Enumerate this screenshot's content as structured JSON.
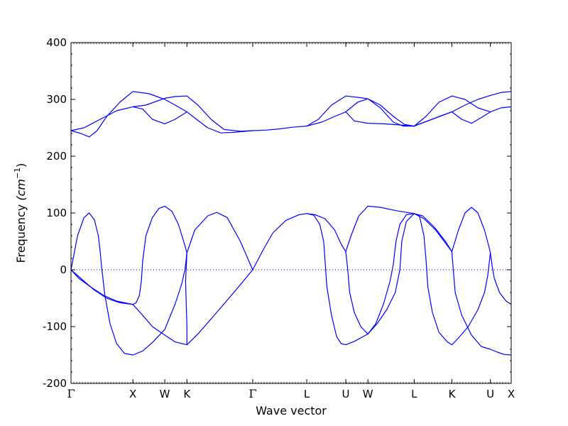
{
  "chart_data": {
    "type": "line",
    "xlabel": "Wave vector",
    "ylabel": "Frequency ",
    "ylabel_unit": "(cm",
    "ylabel_exp": "−1",
    "ylabel_close": ")",
    "ylim": [
      -200,
      400
    ],
    "yticks": [
      -200,
      -100,
      0,
      100,
      200,
      300,
      400
    ],
    "xlim": [
      0,
      6.76
    ],
    "grid": false,
    "line_color": "#0000ff",
    "zero_line": {
      "y": 0,
      "style": "dotted",
      "color": "#0000ff"
    },
    "high_symmetry_points": [
      {
        "label": "Γ",
        "x": 0.0,
        "serif": true
      },
      {
        "label": "X",
        "x": 0.95
      },
      {
        "label": "W",
        "x": 1.44
      },
      {
        "label": "K",
        "x": 1.78
      },
      {
        "label": "Γ",
        "x": 2.79,
        "serif": true
      },
      {
        "label": "L",
        "x": 3.62
      },
      {
        "label": "U",
        "x": 4.22
      },
      {
        "label": "W",
        "x": 4.56
      },
      {
        "label": "L",
        "x": 5.27
      },
      {
        "label": "K",
        "x": 5.85
      },
      {
        "label": "U",
        "x": 6.44
      },
      {
        "label": "X",
        "x": 6.76
      }
    ],
    "series": [
      {
        "points": [
          [
            0,
            0
          ],
          [
            0.1,
            60
          ],
          [
            0.2,
            92
          ],
          [
            0.28,
            100
          ],
          [
            0.36,
            88
          ],
          [
            0.42,
            60
          ],
          [
            0.45,
            30
          ],
          [
            0.47,
            5
          ],
          [
            0.52,
            -45
          ],
          [
            0.6,
            -95
          ],
          [
            0.7,
            -130
          ],
          [
            0.82,
            -147
          ],
          [
            0.95,
            -150
          ],
          [
            1.1,
            -143
          ],
          [
            1.25,
            -128
          ],
          [
            1.44,
            -105
          ],
          [
            1.6,
            -60
          ],
          [
            1.7,
            -25
          ],
          [
            1.75,
            0
          ],
          [
            1.78,
            30
          ],
          [
            1.9,
            70
          ],
          [
            2.1,
            95
          ],
          [
            2.24,
            101
          ],
          [
            2.4,
            92
          ],
          [
            2.6,
            50
          ],
          [
            2.79,
            0
          ],
          [
            2.95,
            35
          ],
          [
            3.1,
            65
          ],
          [
            3.3,
            87
          ],
          [
            3.5,
            97
          ],
          [
            3.62,
            99
          ],
          [
            3.73,
            96
          ],
          [
            3.82,
            80
          ],
          [
            3.88,
            50
          ],
          [
            3.93,
            -30
          ],
          [
            4.0,
            -80
          ],
          [
            4.08,
            -118
          ],
          [
            4.15,
            -130
          ],
          [
            4.22,
            -132
          ],
          [
            4.35,
            -126
          ],
          [
            4.56,
            -113
          ],
          [
            4.68,
            -95
          ],
          [
            4.8,
            -60
          ],
          [
            4.9,
            -20
          ],
          [
            4.95,
            10
          ],
          [
            4.99,
            50
          ],
          [
            5.05,
            80
          ],
          [
            5.15,
            97
          ],
          [
            5.27,
            99
          ],
          [
            5.42,
            90
          ],
          [
            5.6,
            70
          ],
          [
            5.85,
            32
          ],
          [
            5.85,
            30
          ],
          [
            5.9,
            -40
          ],
          [
            6.0,
            -80
          ],
          [
            6.15,
            -115
          ],
          [
            6.3,
            -135
          ],
          [
            6.44,
            -140
          ],
          [
            6.55,
            -145
          ],
          [
            6.65,
            -149
          ],
          [
            6.76,
            -150
          ]
        ]
      },
      {
        "points": [
          [
            0,
            0
          ],
          [
            0.15,
            -15
          ],
          [
            0.35,
            -35
          ],
          [
            0.55,
            -50
          ],
          [
            0.75,
            -58
          ],
          [
            0.95,
            -61
          ],
          [
            1.1,
            -80
          ],
          [
            1.25,
            -100
          ],
          [
            1.44,
            -115
          ],
          [
            1.6,
            -127
          ],
          [
            1.78,
            -132
          ],
          [
            1.95,
            -113
          ],
          [
            2.2,
            -80
          ],
          [
            2.5,
            -40
          ],
          [
            2.79,
            0
          ]
        ]
      },
      {
        "points": [
          [
            0.95,
            -61
          ],
          [
            1.0,
            -58
          ],
          [
            1.05,
            -45
          ],
          [
            1.08,
            -20
          ],
          [
            1.1,
            15
          ],
          [
            1.15,
            60
          ],
          [
            1.25,
            92
          ],
          [
            1.35,
            108
          ],
          [
            1.44,
            112
          ],
          [
            1.55,
            103
          ],
          [
            1.65,
            80
          ],
          [
            1.73,
            50
          ],
          [
            1.78,
            30
          ]
        ]
      },
      {
        "points": [
          [
            0,
            0
          ],
          [
            0.12,
            -15
          ],
          [
            0.3,
            -30
          ],
          [
            0.5,
            -45
          ],
          [
            0.7,
            -55
          ],
          [
            0.95,
            -61
          ]
        ]
      },
      {
        "points": [
          [
            1.78,
            -132
          ],
          [
            1.78,
            -100
          ],
          [
            1.77,
            -60
          ],
          [
            1.76,
            -20
          ],
          [
            1.78,
            30
          ]
        ]
      },
      {
        "points": [
          [
            3.62,
            99
          ],
          [
            3.75,
            97
          ],
          [
            3.9,
            90
          ],
          [
            4.05,
            70
          ],
          [
            4.15,
            45
          ],
          [
            4.22,
            32
          ],
          [
            4.25,
            0
          ],
          [
            4.28,
            -40
          ],
          [
            4.35,
            -75
          ],
          [
            4.45,
            -100
          ],
          [
            4.56,
            -113
          ],
          [
            4.7,
            -95
          ],
          [
            4.85,
            -70
          ],
          [
            4.98,
            -40
          ],
          [
            5.05,
            0
          ],
          [
            5.08,
            50
          ],
          [
            5.15,
            85
          ],
          [
            5.27,
            99
          ],
          [
            5.4,
            95
          ],
          [
            5.58,
            75
          ],
          [
            5.75,
            50
          ],
          [
            5.85,
            32
          ]
        ]
      },
      {
        "points": [
          [
            4.22,
            32
          ],
          [
            4.3,
            60
          ],
          [
            4.42,
            95
          ],
          [
            4.56,
            112
          ],
          [
            4.75,
            110
          ],
          [
            5.0,
            104
          ],
          [
            5.27,
            99
          ]
        ]
      },
      {
        "points": [
          [
            5.85,
            32
          ],
          [
            5.95,
            70
          ],
          [
            6.05,
            100
          ],
          [
            6.15,
            110
          ],
          [
            6.25,
            100
          ],
          [
            6.35,
            70
          ],
          [
            6.42,
            40
          ],
          [
            6.44,
            30
          ],
          [
            6.47,
            5
          ],
          [
            6.5,
            -15
          ],
          [
            6.58,
            -40
          ],
          [
            6.68,
            -55
          ],
          [
            6.76,
            -61
          ]
        ]
      },
      {
        "points": [
          [
            5.27,
            99
          ],
          [
            5.35,
            95
          ],
          [
            5.42,
            60
          ],
          [
            5.45,
            20
          ],
          [
            5.48,
            -30
          ],
          [
            5.55,
            -75
          ],
          [
            5.65,
            -110
          ],
          [
            5.78,
            -127
          ],
          [
            5.85,
            -132
          ],
          [
            5.95,
            -120
          ],
          [
            6.1,
            -100
          ],
          [
            6.25,
            -70
          ],
          [
            6.35,
            -40
          ],
          [
            6.4,
            -10
          ],
          [
            6.44,
            30
          ]
        ]
      },
      {
        "points": [
          [
            0,
            245
          ],
          [
            0.15,
            240
          ],
          [
            0.28,
            234
          ],
          [
            0.4,
            245
          ],
          [
            0.55,
            270
          ],
          [
            0.75,
            295
          ],
          [
            0.95,
            314
          ],
          [
            1.2,
            310
          ],
          [
            1.44,
            300
          ],
          [
            1.6,
            290
          ],
          [
            1.78,
            278
          ],
          [
            1.95,
            263
          ],
          [
            2.1,
            250
          ],
          [
            2.3,
            241
          ],
          [
            2.5,
            242
          ],
          [
            2.79,
            245
          ]
        ]
      },
      {
        "points": [
          [
            0,
            245
          ],
          [
            0.2,
            250
          ],
          [
            0.45,
            265
          ],
          [
            0.7,
            280
          ],
          [
            0.95,
            287
          ],
          [
            1.15,
            290
          ],
          [
            1.44,
            302
          ],
          [
            1.6,
            305
          ],
          [
            1.78,
            306
          ],
          [
            1.95,
            290
          ],
          [
            2.15,
            265
          ],
          [
            2.35,
            247
          ],
          [
            2.6,
            244
          ],
          [
            2.79,
            245
          ]
        ]
      },
      {
        "points": [
          [
            0.95,
            287
          ],
          [
            1.1,
            283
          ],
          [
            1.25,
            265
          ],
          [
            1.44,
            257
          ],
          [
            1.6,
            265
          ],
          [
            1.78,
            278
          ]
        ]
      },
      {
        "points": [
          [
            2.79,
            245
          ],
          [
            3.0,
            246
          ],
          [
            3.2,
            248
          ],
          [
            3.4,
            251
          ],
          [
            3.62,
            253
          ],
          [
            3.8,
            265
          ],
          [
            4.0,
            290
          ],
          [
            4.22,
            306
          ],
          [
            4.45,
            303
          ],
          [
            4.56,
            301
          ],
          [
            4.75,
            285
          ],
          [
            4.95,
            260
          ],
          [
            5.1,
            253
          ],
          [
            5.27,
            253
          ],
          [
            5.45,
            270
          ],
          [
            5.65,
            295
          ],
          [
            5.85,
            306
          ],
          [
            6.05,
            300
          ],
          [
            6.25,
            285
          ],
          [
            6.44,
            278
          ],
          [
            6.6,
            285
          ],
          [
            6.76,
            287
          ]
        ]
      },
      {
        "points": [
          [
            3.62,
            253
          ],
          [
            3.85,
            260
          ],
          [
            4.05,
            270
          ],
          [
            4.22,
            278
          ],
          [
            4.4,
            295
          ],
          [
            4.56,
            301
          ],
          [
            4.75,
            290
          ],
          [
            4.95,
            270
          ],
          [
            5.12,
            256
          ],
          [
            5.27,
            253
          ],
          [
            5.5,
            263
          ],
          [
            5.7,
            272
          ],
          [
            5.85,
            278
          ],
          [
            6.05,
            290
          ],
          [
            6.25,
            300
          ],
          [
            6.44,
            307
          ],
          [
            6.6,
            312
          ],
          [
            6.76,
            314
          ]
        ]
      },
      {
        "points": [
          [
            4.22,
            278
          ],
          [
            4.35,
            262
          ],
          [
            4.56,
            258
          ],
          [
            4.8,
            257
          ],
          [
            5.05,
            255
          ],
          [
            5.27,
            253
          ],
          [
            5.5,
            263
          ],
          [
            5.85,
            278
          ],
          [
            6.0,
            265
          ],
          [
            6.15,
            258
          ],
          [
            6.3,
            268
          ],
          [
            6.44,
            278
          ]
        ]
      }
    ]
  }
}
